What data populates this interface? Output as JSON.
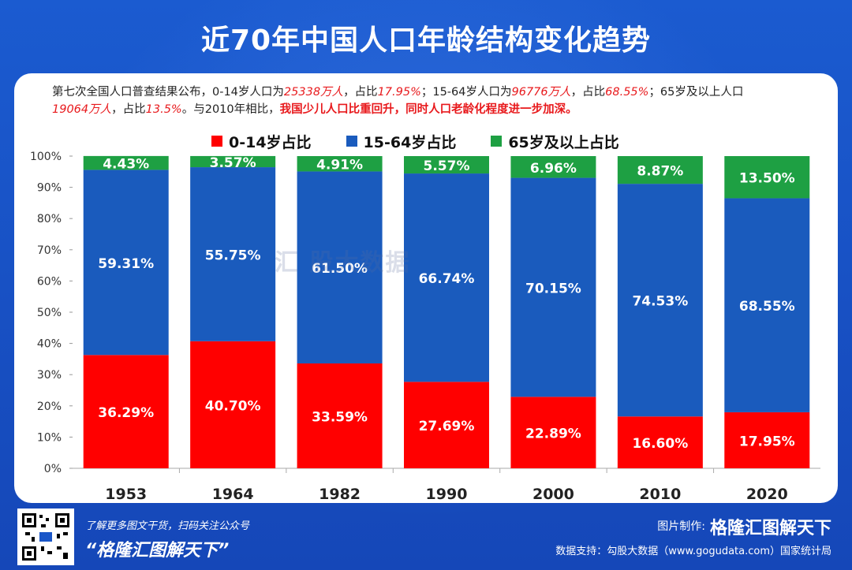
{
  "title": "近70年中国人口年龄结构变化趋势",
  "summary": {
    "p1": "第七次全国人口普查结果公布，0-14岁人口为",
    "v1": "25338万人",
    "p2": "，占比",
    "v2": "17.95%",
    "p3": "；15-64岁人口为",
    "v3": "96776万人",
    "p4": "，占比",
    "v4": "68.55%",
    "p5": "；65岁及以上人口",
    "v5": "19064万人",
    "p6": "，占比",
    "v6": "13.5%",
    "p7": "。与2010年相比，",
    "v7": "我国少儿人口比重回升，同时人口老龄化程度进一步加深。"
  },
  "watermark": "汇 股大数据",
  "footer": {
    "left_line1": "了解更多图文干货，扫码关注公众号",
    "left_line2": "“格隆汇图解天下”",
    "right_label": "图片制作:",
    "right_brand": "格隆汇图解天下",
    "right_line2": "数据支持：勾股大数据（www.gogudata.com）国家统计局"
  },
  "colors": {
    "young": "#ff0000",
    "working": "#1a5bbd",
    "elderly": "#1ea043"
  },
  "chart_data": {
    "type": "bar",
    "stacked": true,
    "categories": [
      "1953",
      "1964",
      "1982",
      "1990",
      "2000",
      "2010",
      "2020"
    ],
    "series": [
      {
        "name": "0-14岁占比",
        "values": [
          36.29,
          40.7,
          33.59,
          27.69,
          22.89,
          16.6,
          17.95
        ],
        "labels": [
          "36.29%",
          "40.70%",
          "33.59%",
          "27.69%",
          "22.89%",
          "16.60%",
          "17.95%"
        ]
      },
      {
        "name": "15-64岁占比",
        "values": [
          59.31,
          55.75,
          61.5,
          66.74,
          70.15,
          74.53,
          68.55
        ],
        "labels": [
          "59.31%",
          "55.75%",
          "61.50%",
          "66.74%",
          "70.15%",
          "74.53%",
          "68.55%"
        ]
      },
      {
        "name": "65岁及以上占比",
        "values": [
          4.43,
          3.57,
          4.91,
          5.57,
          6.96,
          8.87,
          13.5
        ],
        "labels": [
          "4.43%",
          "3.57%",
          "4.91%",
          "5.57%",
          "6.96%",
          "8.87%",
          "13.50%"
        ]
      }
    ],
    "yticks": [
      "0%",
      "10%",
      "20%",
      "30%",
      "40%",
      "50%",
      "60%",
      "70%",
      "80%",
      "90%",
      "100%"
    ],
    "ylim": [
      0,
      100
    ]
  }
}
